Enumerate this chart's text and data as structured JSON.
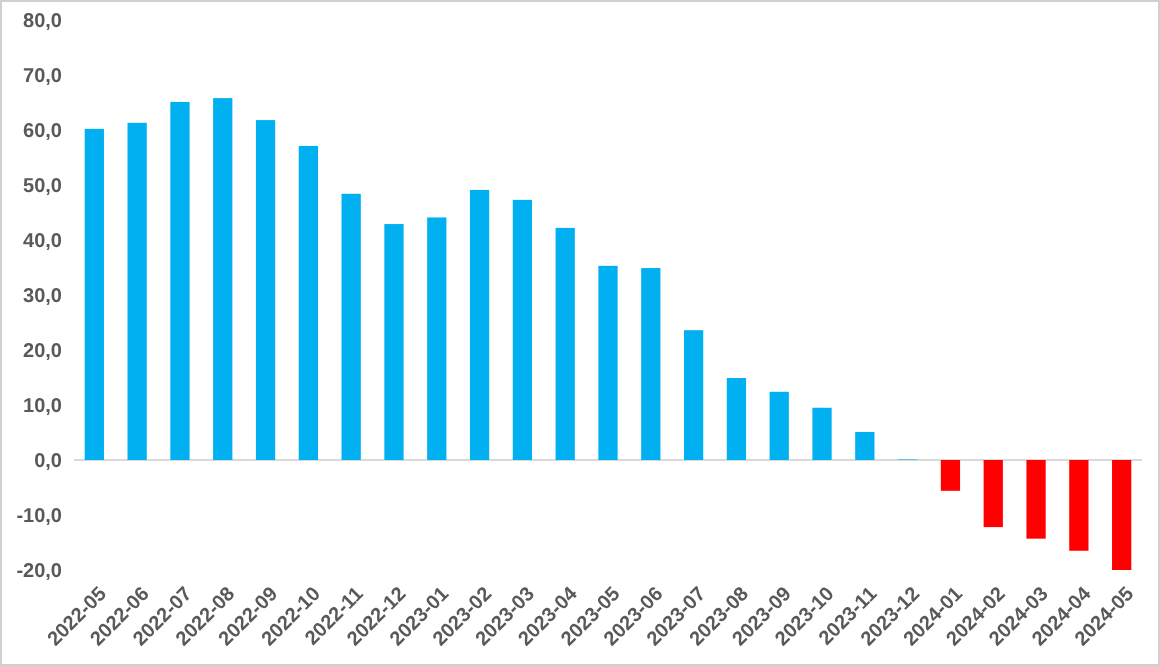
{
  "chart_data": {
    "type": "bar",
    "categories": [
      "2022-05",
      "2022-06",
      "2022-07",
      "2022-08",
      "2022-09",
      "2022-10",
      "2022-11",
      "2022-12",
      "2023-01",
      "2023-02",
      "2023-03",
      "2023-04",
      "2023-05",
      "2023-06",
      "2023-07",
      "2023-08",
      "2023-09",
      "2023-10",
      "2023-11",
      "2023-12",
      "2024-01",
      "2024-02",
      "2024-03",
      "2024-04",
      "2024-05"
    ],
    "values": [
      60.2,
      61.3,
      65.1,
      65.8,
      61.8,
      57.1,
      48.4,
      42.9,
      44.1,
      49.1,
      47.3,
      42.2,
      35.3,
      34.9,
      23.6,
      14.9,
      12.4,
      9.5,
      5.1,
      0.1,
      -5.6,
      -12.2,
      -14.3,
      -16.5,
      -20.0
    ],
    "colors": [
      "#00b0f0",
      "#00b0f0",
      "#00b0f0",
      "#00b0f0",
      "#00b0f0",
      "#00b0f0",
      "#00b0f0",
      "#00b0f0",
      "#00b0f0",
      "#00b0f0",
      "#00b0f0",
      "#00b0f0",
      "#00b0f0",
      "#00b0f0",
      "#00b0f0",
      "#00b0f0",
      "#00b0f0",
      "#00b0f0",
      "#00b0f0",
      "#00b0f0",
      "#ff0000",
      "#ff0000",
      "#ff0000",
      "#ff0000",
      "#ff0000"
    ],
    "ylim": [
      -20,
      80
    ],
    "yticks": [
      {
        "value": -20,
        "label": "-20,0"
      },
      {
        "value": -10,
        "label": "-10,0"
      },
      {
        "value": 0,
        "label": "0,0"
      },
      {
        "value": 10,
        "label": "10,0"
      },
      {
        "value": 20,
        "label": "20,0"
      },
      {
        "value": 30,
        "label": "30,0"
      },
      {
        "value": 40,
        "label": "40,0"
      },
      {
        "value": 50,
        "label": "50,0"
      },
      {
        "value": 60,
        "label": "60,0"
      },
      {
        "value": 70,
        "label": "70,0"
      },
      {
        "value": 80,
        "label": "80,0"
      }
    ]
  }
}
